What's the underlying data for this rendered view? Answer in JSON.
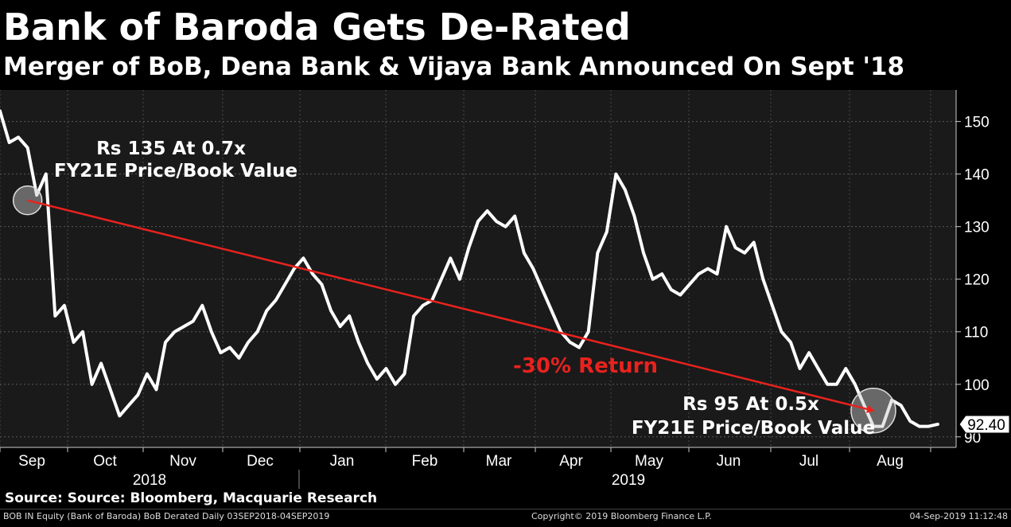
{
  "header": {
    "title": "Bank of Baroda Gets De-Rated",
    "subtitle": "Merger of BoB, Dena Bank & Vijaya Bank Announced On Sept '18"
  },
  "chart_data": {
    "type": "line",
    "series": [
      {
        "name": "BOB IN Equity (Bank of Baroda)",
        "color": "#ffffff",
        "x": [
          0,
          1,
          2,
          3,
          4,
          5,
          6,
          7,
          8,
          9,
          10,
          11,
          12,
          13,
          14,
          15,
          16,
          17,
          18,
          19,
          20,
          21,
          22,
          23,
          24,
          25,
          26,
          27,
          28,
          29,
          30,
          31,
          32,
          33,
          34,
          35,
          36,
          37,
          38,
          39,
          40,
          41,
          42,
          43,
          44,
          45,
          46,
          47,
          48,
          49,
          50,
          51,
          52
        ],
        "values": [
          152,
          146,
          147,
          145,
          136,
          140,
          113,
          115,
          108,
          110,
          100,
          104,
          99,
          94,
          96,
          98,
          102,
          99,
          108,
          110,
          111,
          112,
          115,
          110,
          106,
          107,
          105,
          108,
          110,
          114,
          116,
          119,
          122,
          124,
          121,
          119,
          114,
          111,
          113,
          108,
          104,
          101,
          103,
          100,
          102,
          113,
          115,
          116,
          120,
          124,
          120,
          126,
          131
        ]
      },
      {
        "name": "BOB IN Equity (Bank of Baroda) cont.",
        "color": "#ffffff",
        "x": [
          52,
          53,
          54,
          55,
          56,
          57,
          58,
          59,
          60,
          61,
          62,
          63,
          64,
          65,
          66,
          67,
          68,
          69,
          70,
          71,
          72,
          73,
          74,
          75,
          76,
          77,
          78,
          79,
          80,
          81,
          82,
          83,
          84,
          85,
          86,
          87,
          88,
          89,
          90,
          91,
          92,
          93,
          94,
          95,
          96,
          97,
          98,
          99,
          100,
          101,
          102
        ],
        "values": [
          131,
          133,
          131,
          130,
          132,
          125,
          122,
          118,
          114,
          110,
          108,
          107,
          110,
          125,
          129,
          140,
          137,
          132,
          125,
          120,
          121,
          118,
          117,
          119,
          121,
          122,
          121,
          130,
          126,
          125,
          127,
          120,
          115,
          110,
          108,
          103,
          106,
          103,
          100,
          100,
          103,
          100,
          96,
          92,
          92,
          97,
          96,
          93,
          92,
          92,
          92.4
        ]
      }
    ],
    "trendline": {
      "from_x": 3,
      "from_y": 135,
      "to_x": 95,
      "to_y": 95,
      "color": "#e8221e"
    },
    "highlights": [
      {
        "x": 3,
        "y": 135
      },
      {
        "x": 95,
        "y": 95
      }
    ],
    "annotations": [
      {
        "line1": "Rs 135 At 0.7x",
        "line2": "FY21E Price/Book Value"
      },
      {
        "line1": "Rs 95 At 0.5x",
        "line2": "FY21E Price/Book Value"
      },
      {
        "text": "-30% Return"
      }
    ],
    "last_value_label": "92.40",
    "xaxis": {
      "months": [
        "Sep",
        "Oct",
        "Nov",
        "Dec",
        "Jan",
        "Feb",
        "Mar",
        "Apr",
        "May",
        "Jun",
        "Jul",
        "Aug"
      ],
      "years": [
        "2018",
        "2019"
      ]
    },
    "yaxis": {
      "min": 88,
      "max": 156,
      "ticks": [
        90,
        100,
        110,
        120,
        130,
        140,
        150
      ],
      "side": "right"
    },
    "grid": true
  },
  "source": "Source: Source: Bloomberg, Macquarie Research",
  "footer": {
    "left": "BOB IN Equity (Bank of Baroda) BoB Derated  Daily 03SEP2018-04SEP2019",
    "center": "Copyright© 2019 Bloomberg Finance L.P.",
    "right": "04-Sep-2019 11:12:48"
  }
}
